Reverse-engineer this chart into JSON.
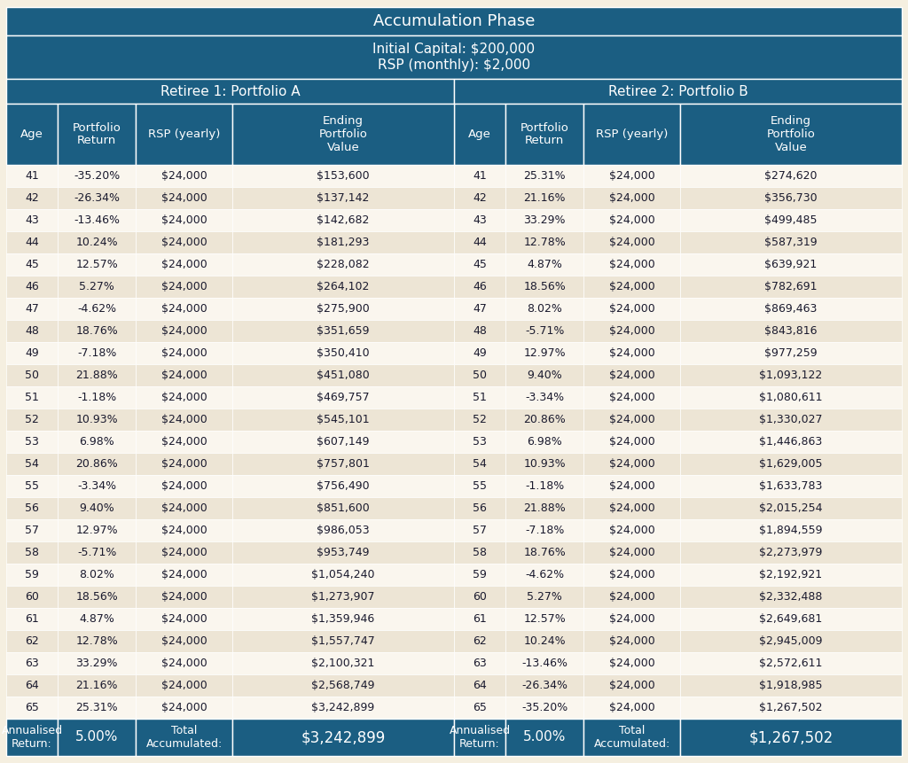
{
  "title1": "Accumulation Phase",
  "title2": "Initial Capital: $200,000\nRSP (monthly): $2,000",
  "header_portfolio_a": "Retiree 1: Portfolio A",
  "header_portfolio_b": "Retiree 2: Portfolio B",
  "col_headers": [
    "Age",
    "Portfolio\nReturn",
    "RSP (yearly)",
    "Ending\nPortfolio\nValue",
    "Age",
    "Portfolio\nReturn",
    "RSP (yearly)",
    "Ending\nPortfolio\nValue"
  ],
  "portfolio_a": [
    [
      41,
      "-35.20%",
      "$24,000",
      "$153,600"
    ],
    [
      42,
      "-26.34%",
      "$24,000",
      "$137,142"
    ],
    [
      43,
      "-13.46%",
      "$24,000",
      "$142,682"
    ],
    [
      44,
      "10.24%",
      "$24,000",
      "$181,293"
    ],
    [
      45,
      "12.57%",
      "$24,000",
      "$228,082"
    ],
    [
      46,
      "5.27%",
      "$24,000",
      "$264,102"
    ],
    [
      47,
      "-4.62%",
      "$24,000",
      "$275,900"
    ],
    [
      48,
      "18.76%",
      "$24,000",
      "$351,659"
    ],
    [
      49,
      "-7.18%",
      "$24,000",
      "$350,410"
    ],
    [
      50,
      "21.88%",
      "$24,000",
      "$451,080"
    ],
    [
      51,
      "-1.18%",
      "$24,000",
      "$469,757"
    ],
    [
      52,
      "10.93%",
      "$24,000",
      "$545,101"
    ],
    [
      53,
      "6.98%",
      "$24,000",
      "$607,149"
    ],
    [
      54,
      "20.86%",
      "$24,000",
      "$757,801"
    ],
    [
      55,
      "-3.34%",
      "$24,000",
      "$756,490"
    ],
    [
      56,
      "9.40%",
      "$24,000",
      "$851,600"
    ],
    [
      57,
      "12.97%",
      "$24,000",
      "$986,053"
    ],
    [
      58,
      "-5.71%",
      "$24,000",
      "$953,749"
    ],
    [
      59,
      "8.02%",
      "$24,000",
      "$1,054,240"
    ],
    [
      60,
      "18.56%",
      "$24,000",
      "$1,273,907"
    ],
    [
      61,
      "4.87%",
      "$24,000",
      "$1,359,946"
    ],
    [
      62,
      "12.78%",
      "$24,000",
      "$1,557,747"
    ],
    [
      63,
      "33.29%",
      "$24,000",
      "$2,100,321"
    ],
    [
      64,
      "21.16%",
      "$24,000",
      "$2,568,749"
    ],
    [
      65,
      "25.31%",
      "$24,000",
      "$3,242,899"
    ]
  ],
  "portfolio_b": [
    [
      41,
      "25.31%",
      "$24,000",
      "$274,620"
    ],
    [
      42,
      "21.16%",
      "$24,000",
      "$356,730"
    ],
    [
      43,
      "33.29%",
      "$24,000",
      "$499,485"
    ],
    [
      44,
      "12.78%",
      "$24,000",
      "$587,319"
    ],
    [
      45,
      "4.87%",
      "$24,000",
      "$639,921"
    ],
    [
      46,
      "18.56%",
      "$24,000",
      "$782,691"
    ],
    [
      47,
      "8.02%",
      "$24,000",
      "$869,463"
    ],
    [
      48,
      "-5.71%",
      "$24,000",
      "$843,816"
    ],
    [
      49,
      "12.97%",
      "$24,000",
      "$977,259"
    ],
    [
      50,
      "9.40%",
      "$24,000",
      "$1,093,122"
    ],
    [
      51,
      "-3.34%",
      "$24,000",
      "$1,080,611"
    ],
    [
      52,
      "20.86%",
      "$24,000",
      "$1,330,027"
    ],
    [
      53,
      "6.98%",
      "$24,000",
      "$1,446,863"
    ],
    [
      54,
      "10.93%",
      "$24,000",
      "$1,629,005"
    ],
    [
      55,
      "-1.18%",
      "$24,000",
      "$1,633,783"
    ],
    [
      56,
      "21.88%",
      "$24,000",
      "$2,015,254"
    ],
    [
      57,
      "-7.18%",
      "$24,000",
      "$1,894,559"
    ],
    [
      58,
      "18.76%",
      "$24,000",
      "$2,273,979"
    ],
    [
      59,
      "-4.62%",
      "$24,000",
      "$2,192,921"
    ],
    [
      60,
      "5.27%",
      "$24,000",
      "$2,332,488"
    ],
    [
      61,
      "12.57%",
      "$24,000",
      "$2,649,681"
    ],
    [
      62,
      "10.24%",
      "$24,000",
      "$2,945,009"
    ],
    [
      63,
      "-13.46%",
      "$24,000",
      "$2,572,611"
    ],
    [
      64,
      "-26.34%",
      "$24,000",
      "$1,918,985"
    ],
    [
      65,
      "-35.20%",
      "$24,000",
      "$1,267,502"
    ]
  ],
  "footer_a": [
    "Annualised\nReturn:",
    "5.00%",
    "Total\nAccumulated:",
    "$3,242,899"
  ],
  "footer_b": [
    "Annualised\nReturn:",
    "5.00%",
    "Total\nAccumulated:",
    "$1,267,502"
  ],
  "dark_blue": "#1b5e82",
  "row_odd": "#faf6ee",
  "row_even": "#ede5d5",
  "text_light": "#ffffff",
  "text_dark": "#1a1a2e",
  "border_color": "#aaaaaa",
  "bg_color": "#f5efe0"
}
